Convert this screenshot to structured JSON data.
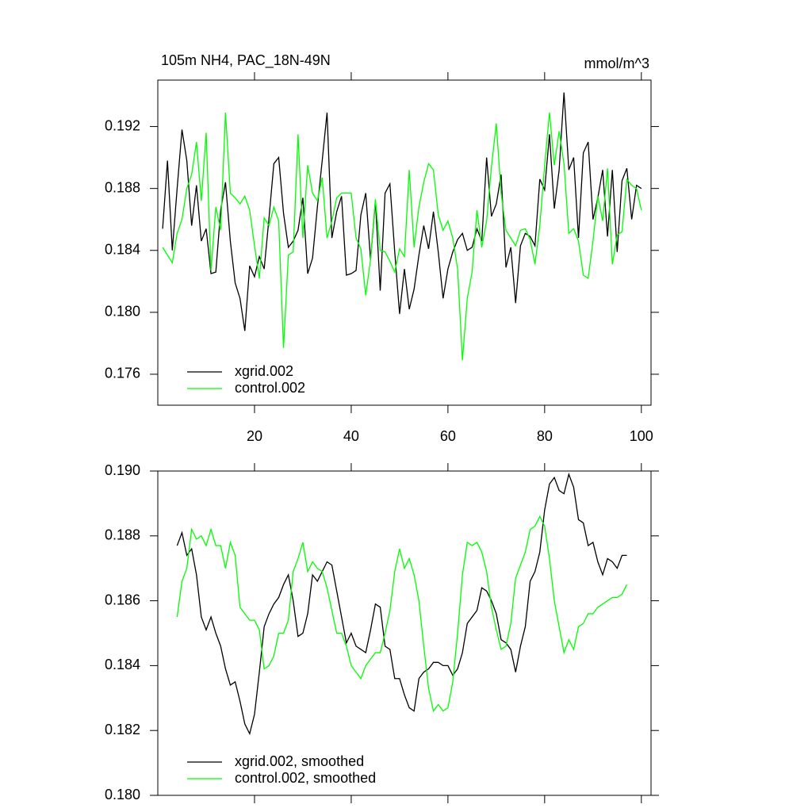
{
  "chart_data": [
    {
      "type": "line",
      "title": "105m NH4, PAC_18N-49N",
      "units": "mmol/m^3",
      "x": [
        1,
        2,
        3,
        4,
        5,
        6,
        7,
        8,
        9,
        10,
        11,
        12,
        13,
        14,
        15,
        16,
        17,
        18,
        19,
        20,
        21,
        22,
        23,
        24,
        25,
        26,
        27,
        28,
        29,
        30,
        31,
        32,
        33,
        34,
        35,
        36,
        37,
        38,
        39,
        40,
        41,
        42,
        43,
        44,
        45,
        46,
        47,
        48,
        49,
        50,
        51,
        52,
        53,
        54,
        55,
        56,
        57,
        58,
        59,
        60,
        61,
        62,
        63,
        64,
        65,
        66,
        67,
        68,
        69,
        70,
        71,
        72,
        73,
        74,
        75,
        76,
        77,
        78,
        79,
        80,
        81,
        82,
        83,
        84,
        85,
        86,
        87,
        88,
        89,
        90,
        91,
        92,
        93,
        94,
        95,
        96,
        97,
        98,
        99,
        100
      ],
      "series": [
        {
          "name": "xgrid.002",
          "color": "#000000",
          "values": [
            0.1854,
            0.1898,
            0.184,
            0.188,
            0.1918,
            0.1898,
            0.1856,
            0.1882,
            0.1846,
            0.1854,
            0.1825,
            0.1826,
            0.1866,
            0.1884,
            0.1846,
            0.1819,
            0.1809,
            0.1788,
            0.183,
            0.1823,
            0.1836,
            0.1828,
            0.1861,
            0.1896,
            0.19,
            0.1864,
            0.1842,
            0.1846,
            0.1853,
            0.1874,
            0.1825,
            0.1835,
            0.1868,
            0.1898,
            0.1929,
            0.1848,
            0.1865,
            0.1875,
            0.1824,
            0.1825,
            0.1827,
            0.1863,
            0.1877,
            0.1834,
            0.1872,
            0.1814,
            0.1877,
            0.1883,
            0.1839,
            0.1799,
            0.1828,
            0.1802,
            0.1815,
            0.1837,
            0.1856,
            0.1841,
            0.1865,
            0.1839,
            0.1809,
            0.1828,
            0.1839,
            0.1847,
            0.1851,
            0.184,
            0.1842,
            0.1854,
            0.1846,
            0.19,
            0.1862,
            0.187,
            0.1889,
            0.1829,
            0.1842,
            0.1806,
            0.1843,
            0.1851,
            0.1849,
            0.1843,
            0.1886,
            0.1879,
            0.1915,
            0.1867,
            0.1892,
            0.1942,
            0.1892,
            0.19,
            0.1848,
            0.1903,
            0.191,
            0.186,
            0.1874,
            0.1892,
            0.1849,
            0.1892,
            0.1839,
            0.1885,
            0.1893,
            0.186,
            0.1882,
            0.188
          ]
        },
        {
          "name": "control.002",
          "color": "#00ff00",
          "values": [
            0.1842,
            0.1837,
            0.1832,
            0.1851,
            0.186,
            0.188,
            0.1889,
            0.191,
            0.1872,
            0.1916,
            0.1827,
            0.1868,
            0.1853,
            0.1929,
            0.1877,
            0.1874,
            0.187,
            0.1875,
            0.1866,
            0.1843,
            0.1822,
            0.1861,
            0.1856,
            0.1868,
            0.1859,
            0.1777,
            0.1837,
            0.1839,
            0.1915,
            0.1848,
            0.1895,
            0.1877,
            0.1872,
            0.1887,
            0.1848,
            0.1859,
            0.1874,
            0.1877,
            0.1877,
            0.1877,
            0.1848,
            0.1841,
            0.1811,
            0.1834,
            0.1873,
            0.184,
            0.1839,
            0.1833,
            0.1826,
            0.1841,
            0.1836,
            0.1892,
            0.1842,
            0.1868,
            0.1884,
            0.1896,
            0.1892,
            0.1863,
            0.1853,
            0.1859,
            0.1848,
            0.1828,
            0.1769,
            0.1809,
            0.1826,
            0.1866,
            0.1842,
            0.1859,
            0.1894,
            0.1922,
            0.1877,
            0.1853,
            0.1848,
            0.1843,
            0.1853,
            0.1854,
            0.1847,
            0.1831,
            0.1856,
            0.1895,
            0.1929,
            0.1895,
            0.1917,
            0.1896,
            0.1851,
            0.1854,
            0.1846,
            0.1824,
            0.1822,
            0.1846,
            0.1875,
            0.1859,
            0.1893,
            0.1831,
            0.185,
            0.1852,
            0.1886,
            0.1882,
            0.188,
            0.1866
          ]
        }
      ],
      "xlim": [
        0,
        102
      ],
      "xticks": [
        20,
        40,
        60,
        80,
        100
      ],
      "ylim": [
        0.174,
        0.195
      ],
      "yticks": [
        {
          "value": 0.176,
          "label": "0.176"
        },
        {
          "value": 0.18,
          "label": "0.180"
        },
        {
          "value": 0.184,
          "label": "0.184"
        },
        {
          "value": 0.188,
          "label": "0.188"
        },
        {
          "value": 0.192,
          "label": "0.192"
        }
      ],
      "legend": "lower left"
    },
    {
      "type": "line",
      "x": [
        1,
        2,
        3,
        4,
        5,
        6,
        7,
        8,
        9,
        10,
        11,
        12,
        13,
        14,
        15,
        16,
        17,
        18,
        19,
        20,
        21,
        22,
        23,
        24,
        25,
        26,
        27,
        28,
        29,
        30,
        31,
        32,
        33,
        34,
        35,
        36,
        37,
        38,
        39,
        40,
        41,
        42,
        43,
        44,
        45,
        46,
        47,
        48,
        49,
        50,
        51,
        52,
        53,
        54,
        55,
        56,
        57,
        58,
        59,
        60,
        61,
        62,
        63,
        64,
        65,
        66,
        67,
        68,
        69,
        70,
        71,
        72,
        73,
        74,
        75,
        76,
        77,
        78,
        79,
        80,
        81,
        82,
        83,
        84,
        85,
        86,
        87,
        88,
        89,
        90,
        91,
        92,
        93,
        94,
        95,
        96,
        97,
        98,
        99,
        100
      ],
      "series": [
        {
          "name": "xgrid.002, smoothed",
          "color": "#000000",
          "values": [
            null,
            null,
            null,
            0.1877,
            0.1881,
            0.1874,
            0.1876,
            0.1868,
            0.1855,
            0.1851,
            0.1855,
            0.185,
            0.1846,
            0.1839,
            0.1834,
            0.1835,
            0.1829,
            0.1822,
            0.1819,
            0.1825,
            0.1838,
            0.1852,
            0.1856,
            0.1859,
            0.1861,
            0.1865,
            0.1868,
            0.186,
            0.1849,
            0.185,
            0.1856,
            0.1868,
            0.1866,
            0.1869,
            0.1872,
            0.1871,
            0.1863,
            0.1855,
            0.1847,
            0.185,
            0.1846,
            0.1845,
            0.1844,
            0.1851,
            0.1859,
            0.1858,
            0.1846,
            0.1845,
            0.1836,
            0.1836,
            0.1831,
            0.1827,
            0.1826,
            0.1836,
            0.1838,
            0.1839,
            0.1841,
            0.1841,
            0.184,
            0.184,
            0.1837,
            0.1839,
            0.1844,
            0.1853,
            0.1855,
            0.1857,
            0.1864,
            0.1863,
            0.186,
            0.1856,
            0.1848,
            0.1847,
            0.1845,
            0.1838,
            0.1846,
            0.1852,
            0.1866,
            0.1869,
            0.1875,
            0.1888,
            0.1896,
            0.1898,
            0.1894,
            0.1893,
            0.1899,
            0.1895,
            0.1885,
            0.1884,
            0.1877,
            0.1878,
            0.1872,
            0.1868,
            0.1873,
            0.1872,
            0.187,
            0.1874,
            0.1874,
            null,
            null,
            null
          ]
        },
        {
          "name": "control.002, smoothed",
          "color": "#00ff00",
          "values": [
            null,
            null,
            null,
            0.1855,
            0.1866,
            0.187,
            0.1882,
            0.1879,
            0.188,
            0.1877,
            0.1882,
            0.1877,
            0.1877,
            0.187,
            0.1878,
            0.1874,
            0.1858,
            0.1856,
            0.1854,
            0.1854,
            0.1851,
            0.1839,
            0.184,
            0.1843,
            0.185,
            0.185,
            0.1854,
            0.1869,
            0.1873,
            0.1878,
            0.1869,
            0.1872,
            0.187,
            0.1869,
            0.1864,
            0.1857,
            0.185,
            0.185,
            0.1846,
            0.184,
            0.1838,
            0.1836,
            0.184,
            0.1842,
            0.1844,
            0.1844,
            0.185,
            0.1857,
            0.1869,
            0.1876,
            0.187,
            0.1873,
            0.1868,
            0.186,
            0.1846,
            0.1833,
            0.1826,
            0.1828,
            0.1826,
            0.1827,
            0.1835,
            0.185,
            0.1868,
            0.1878,
            0.1877,
            0.1878,
            0.1875,
            0.1869,
            0.1858,
            0.1851,
            0.1845,
            0.1846,
            0.1853,
            0.1867,
            0.1871,
            0.1875,
            0.1882,
            0.1883,
            0.1886,
            0.1883,
            0.1873,
            0.186,
            0.1852,
            0.1844,
            0.1848,
            0.1845,
            0.1852,
            0.1853,
            0.1856,
            0.1856,
            0.1858,
            0.1859,
            0.186,
            0.1861,
            0.1861,
            0.1862,
            0.1865,
            null,
            null,
            null
          ]
        }
      ],
      "xlim": [
        0,
        102
      ],
      "xticks": [
        20,
        40,
        60,
        80,
        100
      ],
      "show_xtick_labels": false,
      "ylim": [
        0.18,
        0.19
      ],
      "yticks": [
        {
          "value": 0.18,
          "label": "0.180"
        },
        {
          "value": 0.182,
          "label": "0.182"
        },
        {
          "value": 0.184,
          "label": "0.184"
        },
        {
          "value": 0.186,
          "label": "0.186"
        },
        {
          "value": 0.188,
          "label": "0.188"
        },
        {
          "value": 0.19,
          "label": "0.190"
        }
      ],
      "legend": "lower left"
    }
  ]
}
